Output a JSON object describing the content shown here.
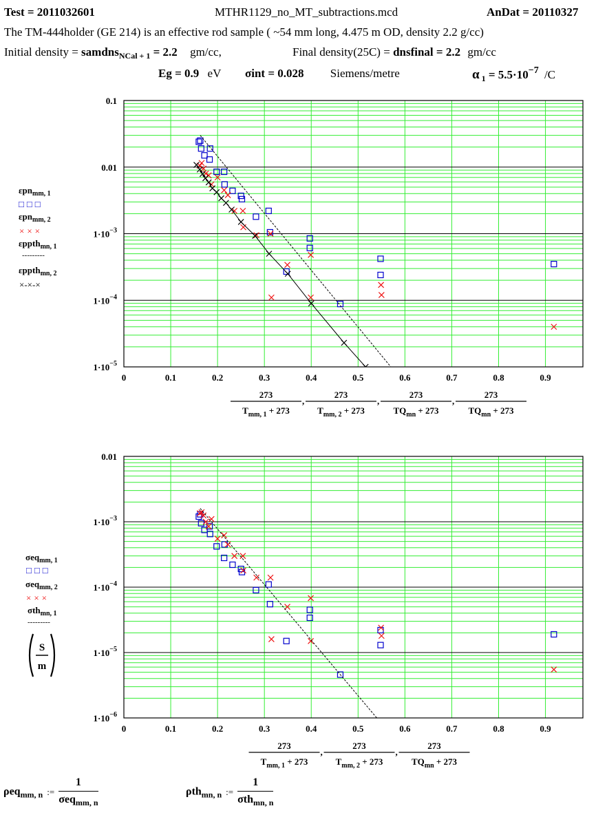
{
  "header": {
    "test_label": "Test = 2011032601",
    "file_name": "MTHR1129_no_MT_subtractions.mcd",
    "andat_label": "AnDat = 20110327",
    "description": "The TM-444holder (GE 214)  is an effective rod sample ( ~54 mm long, 4.475 m OD, density 2.2 g/cc)",
    "initial_density_label": "Initial density = ",
    "initial_density_var": "samdns",
    "initial_density_sub": "NCal + 1",
    "initial_density_value": " = 2.2",
    "initial_density_unit": "gm/cc,",
    "final_density_label": "Final density(25C) = ",
    "final_density_var": "dnsfinal",
    "final_density_value": " = 2.2",
    "final_density_unit": "gm/cc",
    "eg_label": "Eg = 0.9",
    "eg_unit": "eV",
    "sigma_label": "σint = 0.028",
    "sigma_unit": "Siemens/metre",
    "alpha_label": "α",
    "alpha_sub": "1",
    "alpha_value": " = 5.5·10",
    "alpha_exp": "−7",
    "alpha_unit": "/C"
  },
  "legend1": {
    "s1_name": "εpn",
    "s1_sub": "mm, 1",
    "s1_marks": "□□□",
    "s2_name": "εpn",
    "s2_sub": "mm, 2",
    "s2_marks": "×××",
    "s3_name": "εppth",
    "s3_sub": "mn, 1",
    "s3_marks": "---------",
    "s4_name": "εppth",
    "s4_sub": "mn, 2",
    "s4_marks": "×-×-×"
  },
  "legend2": {
    "s1_name": "σeq",
    "s1_sub": "mm, 1",
    "s1_marks": "□□□",
    "s2_name": "σeq",
    "s2_sub": "mm, 2",
    "s2_marks": "×××",
    "s3_name": "σth",
    "s3_sub": "mn, 1",
    "s3_marks": "---------",
    "unit_num": "S",
    "unit_den": "m"
  },
  "footer": {
    "rho_eq_lhs": "ρeq",
    "rho_eq_sub": "mm, n",
    "rho_eq_assign": ":=",
    "rho_eq_num": "1",
    "rho_eq_den": "σeq",
    "rho_eq_den_sub": "mm, n",
    "rho_th_lhs": "ρth",
    "rho_th_sub": "mn, n",
    "rho_th_assign": ":=",
    "rho_th_num": "1",
    "rho_th_den": "σth",
    "rho_th_den_sub": "mn, n"
  },
  "colors": {
    "grid_minor": "#33ee33",
    "grid_major": "#000000",
    "blue": "#0000cc",
    "red": "#ee1111",
    "black": "#000000"
  },
  "chart_data": [
    {
      "type": "scatter",
      "y_scale": "log",
      "xlim": [
        0,
        0.98
      ],
      "ylim": [
        1e-05,
        0.1
      ],
      "x_ticks": [
        "0",
        "0.1",
        "0.2",
        "0.3",
        "0.4",
        "0.5",
        "0.6",
        "0.7",
        "0.8",
        "0.9"
      ],
      "y_ticks": [
        {
          "value": 0.1,
          "base": "0.1",
          "exp": ""
        },
        {
          "value": 0.01,
          "base": "0.01",
          "exp": ""
        },
        {
          "value": 0.001,
          "base": "1·10",
          "exp": "−3"
        },
        {
          "value": 0.0001,
          "base": "1·10",
          "exp": "−4"
        },
        {
          "value": 1e-05,
          "base": "1·10",
          "exp": "−5"
        }
      ],
      "xlabel_num": "273",
      "xlabel_dens": [
        "T",
        "T",
        "TQ",
        "TQ"
      ],
      "xlabel_den_subs": [
        "mm, 1",
        "mm, 2",
        "mn",
        "mn"
      ],
      "xlabel_den_tail": " + 273",
      "series": [
        {
          "marker": "square",
          "color": "#0000cc",
          "points": [
            [
              0.16,
              0.024
            ],
            [
              0.163,
              0.025
            ],
            [
              0.165,
              0.019
            ],
            [
              0.172,
              0.015
            ],
            [
              0.183,
              0.013
            ],
            [
              0.184,
              0.019
            ],
            [
              0.198,
              0.0085
            ],
            [
              0.214,
              0.0085
            ],
            [
              0.215,
              0.0055
            ],
            [
              0.232,
              0.0044
            ],
            [
              0.25,
              0.0037
            ],
            [
              0.252,
              0.0033
            ],
            [
              0.282,
              0.0018
            ],
            [
              0.309,
              0.0022
            ],
            [
              0.312,
              0.00105
            ],
            [
              0.347,
              0.00027
            ],
            [
              0.397,
              0.00085
            ],
            [
              0.397,
              0.00061
            ],
            [
              0.462,
              8.8e-05
            ],
            [
              0.548,
              0.00042
            ],
            [
              0.548,
              0.00024
            ],
            [
              0.918,
              0.00035
            ]
          ]
        },
        {
          "marker": "x",
          "color": "#ee1111",
          "points": [
            [
              0.162,
              0.0105
            ],
            [
              0.166,
              0.0115
            ],
            [
              0.17,
              0.0095
            ],
            [
              0.175,
              0.008
            ],
            [
              0.181,
              0.0075
            ],
            [
              0.187,
              0.0055
            ],
            [
              0.2,
              0.007
            ],
            [
              0.214,
              0.0045
            ],
            [
              0.222,
              0.0038
            ],
            [
              0.236,
              0.0022
            ],
            [
              0.254,
              0.0022
            ],
            [
              0.255,
              0.00125
            ],
            [
              0.283,
              0.00095
            ],
            [
              0.313,
              0.001
            ],
            [
              0.315,
              0.00011
            ],
            [
              0.349,
              0.00034
            ],
            [
              0.399,
              0.00048
            ],
            [
              0.399,
              0.00011
            ],
            [
              0.549,
              0.00017
            ],
            [
              0.55,
              0.00012
            ],
            [
              0.918,
              4e-05
            ]
          ]
        },
        {
          "marker": "line",
          "color": "#000000",
          "points": [
            [
              0.163,
              0.03
            ],
            [
              0.57,
              1e-05
            ]
          ]
        },
        {
          "marker": "x-line",
          "color": "#000000",
          "points": [
            [
              0.155,
              0.0108
            ],
            [
              0.162,
              0.0092
            ],
            [
              0.168,
              0.0079
            ],
            [
              0.174,
              0.0068
            ],
            [
              0.181,
              0.0059
            ],
            [
              0.189,
              0.0048
            ],
            [
              0.198,
              0.0042
            ],
            [
              0.208,
              0.0034
            ],
            [
              0.218,
              0.0029
            ],
            [
              0.23,
              0.0023
            ],
            [
              0.25,
              0.0015
            ],
            [
              0.28,
              0.00093
            ],
            [
              0.31,
              0.0005
            ],
            [
              0.35,
              0.00025
            ],
            [
              0.4,
              9e-05
            ],
            [
              0.47,
              2.3e-05
            ],
            [
              0.516,
              1e-05
            ]
          ]
        }
      ]
    },
    {
      "type": "scatter",
      "y_scale": "log",
      "xlim": [
        0,
        0.98
      ],
      "ylim": [
        1e-06,
        0.01
      ],
      "x_ticks": [
        "0",
        "0.1",
        "0.2",
        "0.3",
        "0.4",
        "0.5",
        "0.6",
        "0.7",
        "0.8",
        "0.9"
      ],
      "y_ticks": [
        {
          "value": 0.01,
          "base": "0.01",
          "exp": ""
        },
        {
          "value": 0.001,
          "base": "1·10",
          "exp": "−3"
        },
        {
          "value": 0.0001,
          "base": "1·10",
          "exp": "−4"
        },
        {
          "value": 1e-05,
          "base": "1·10",
          "exp": "−5"
        },
        {
          "value": 1e-06,
          "base": "1·10",
          "exp": "−6"
        }
      ],
      "xlabel_num": "273",
      "xlabel_dens": [
        "T",
        "T",
        "TQ"
      ],
      "xlabel_den_subs": [
        "mm, 1",
        "mm, 2",
        "mn"
      ],
      "xlabel_den_tail": " + 273",
      "series": [
        {
          "marker": "square",
          "color": "#0000cc",
          "points": [
            [
              0.16,
              0.0012
            ],
            [
              0.163,
              0.0013
            ],
            [
              0.165,
              0.00095
            ],
            [
              0.172,
              0.00075
            ],
            [
              0.183,
              0.00085
            ],
            [
              0.184,
              0.00065
            ],
            [
              0.198,
              0.00042
            ],
            [
              0.214,
              0.00028
            ],
            [
              0.215,
              0.00045
            ],
            [
              0.232,
              0.00022
            ],
            [
              0.25,
              0.00019
            ],
            [
              0.252,
              0.00017
            ],
            [
              0.282,
              9e-05
            ],
            [
              0.309,
              0.00011
            ],
            [
              0.312,
              5.5e-05
            ],
            [
              0.347,
              1.5e-05
            ],
            [
              0.397,
              4.5e-05
            ],
            [
              0.397,
              3.4e-05
            ],
            [
              0.462,
              4.6e-06
            ],
            [
              0.548,
              2.2e-05
            ],
            [
              0.548,
              1.3e-05
            ],
            [
              0.918,
              1.9e-05
            ]
          ]
        },
        {
          "marker": "x",
          "color": "#ee1111",
          "points": [
            [
              0.162,
              0.00135
            ],
            [
              0.166,
              0.0014
            ],
            [
              0.17,
              0.00125
            ],
            [
              0.175,
              0.001
            ],
            [
              0.181,
              0.00085
            ],
            [
              0.187,
              0.0011
            ],
            [
              0.2,
              0.00055
            ],
            [
              0.214,
              0.00062
            ],
            [
              0.222,
              0.00045
            ],
            [
              0.236,
              0.0003
            ],
            [
              0.254,
              0.0003
            ],
            [
              0.255,
              0.00018
            ],
            [
              0.283,
              0.00014
            ],
            [
              0.313,
              0.00014
            ],
            [
              0.315,
              1.6e-05
            ],
            [
              0.349,
              5e-05
            ],
            [
              0.399,
              6.8e-05
            ],
            [
              0.399,
              1.5e-05
            ],
            [
              0.549,
              2.4e-05
            ],
            [
              0.55,
              1.8e-05
            ],
            [
              0.918,
              5.5e-06
            ]
          ]
        },
        {
          "marker": "line",
          "color": "#000000",
          "points": [
            [
              0.163,
              0.0016
            ],
            [
              0.54,
              1e-06
            ]
          ]
        }
      ]
    }
  ]
}
